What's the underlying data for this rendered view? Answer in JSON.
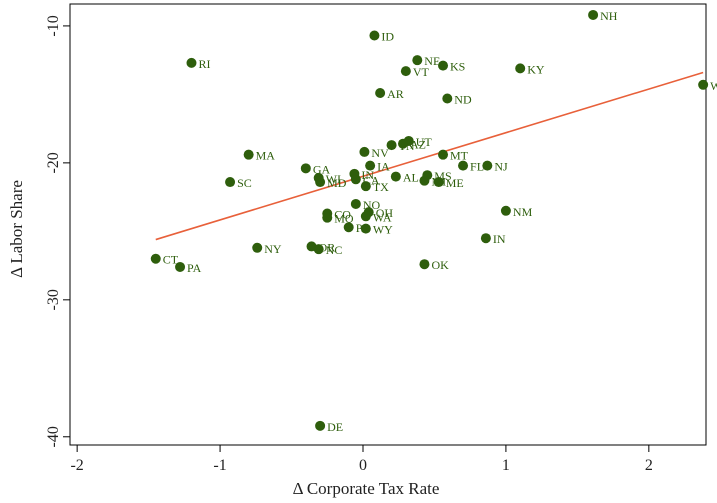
{
  "colors": {
    "point": "#2e5e0c",
    "fit_line": "#e8603a",
    "axis": "#000000"
  },
  "chart_data": {
    "type": "scatter",
    "xlabel": "Δ Corporate Tax Rate",
    "ylabel": "Δ Labor Share",
    "xlim": [
      -2.05,
      2.4
    ],
    "ylim": [
      -40.6,
      -8.4
    ],
    "xticks": [
      -2,
      -1,
      0,
      1,
      2
    ],
    "yticks": [
      -10,
      -20,
      -30,
      -40
    ],
    "xtick_labels": [
      "-2",
      "-1",
      "0",
      "1",
      "2"
    ],
    "ytick_labels": [
      "-10",
      "-20",
      "-30",
      "-40"
    ],
    "grid": false,
    "legend": "none",
    "fit_line": {
      "x": [
        -1.45,
        2.38
      ],
      "y": [
        -25.6,
        -13.4
      ]
    },
    "points": [
      {
        "label": "NH",
        "x": 1.61,
        "y": -9.2
      },
      {
        "label": "WV",
        "x": 2.38,
        "y": -14.3
      },
      {
        "label": "ID",
        "x": 0.08,
        "y": -10.7
      },
      {
        "label": "NE",
        "x": 0.38,
        "y": -12.5
      },
      {
        "label": "KS",
        "x": 0.56,
        "y": -12.9
      },
      {
        "label": "VT",
        "x": 0.3,
        "y": -13.3
      },
      {
        "label": "KY",
        "x": 1.1,
        "y": -13.1
      },
      {
        "label": "RI",
        "x": -1.2,
        "y": -12.7
      },
      {
        "label": "AR",
        "x": 0.12,
        "y": -14.9
      },
      {
        "label": "ND",
        "x": 0.59,
        "y": -15.3
      },
      {
        "label": "UT",
        "x": 0.32,
        "y": -18.4
      },
      {
        "label": "AZ",
        "x": 0.28,
        "y": -18.6
      },
      {
        "label": "TN",
        "x": 0.2,
        "y": -18.7
      },
      {
        "label": "MA",
        "x": -0.8,
        "y": -19.4
      },
      {
        "label": "NV",
        "x": 0.01,
        "y": -19.2
      },
      {
        "label": "MT",
        "x": 0.56,
        "y": -19.4
      },
      {
        "label": "FL",
        "x": 0.7,
        "y": -20.2
      },
      {
        "label": "NJ",
        "x": 0.87,
        "y": -20.2
      },
      {
        "label": "IA",
        "x": 0.05,
        "y": -20.2
      },
      {
        "label": "GA",
        "x": -0.4,
        "y": -20.4
      },
      {
        "label": "IN",
        "x": -0.06,
        "y": -20.8
      },
      {
        "label": "AL",
        "x": 0.23,
        "y": -21.0
      },
      {
        "label": "MS",
        "x": 0.45,
        "y": -20.9
      },
      {
        "label": "MI",
        "x": 0.43,
        "y": -21.3
      },
      {
        "label": "ME",
        "x": 0.53,
        "y": -21.4
      },
      {
        "label": "WI",
        "x": -0.31,
        "y": -21.1
      },
      {
        "label": "CA",
        "x": -0.05,
        "y": -21.2
      },
      {
        "label": "MD",
        "x": -0.3,
        "y": -21.4
      },
      {
        "label": "SC",
        "x": -0.93,
        "y": -21.4
      },
      {
        "label": "TX",
        "x": 0.02,
        "y": -21.7
      },
      {
        "label": "NO",
        "x": -0.05,
        "y": -23.0
      },
      {
        "label": "CO",
        "x": -0.25,
        "y": -23.7
      },
      {
        "label": "OH",
        "x": 0.04,
        "y": -23.6
      },
      {
        "label": "WA",
        "x": 0.02,
        "y": -23.9
      },
      {
        "label": "MO",
        "x": -0.25,
        "y": -24.0
      },
      {
        "label": "NM",
        "x": 1.0,
        "y": -23.5
      },
      {
        "label": "PA",
        "x": -0.1,
        "y": -24.7
      },
      {
        "label": "WY",
        "x": 0.02,
        "y": -24.8
      },
      {
        "label": "IN",
        "x": 0.86,
        "y": -25.5
      },
      {
        "label": "NY",
        "x": -0.74,
        "y": -26.2
      },
      {
        "label": "OR",
        "x": -0.36,
        "y": -26.1
      },
      {
        "label": "NC",
        "x": -0.31,
        "y": -26.3
      },
      {
        "label": "CT",
        "x": -1.45,
        "y": -27.0
      },
      {
        "label": "PA",
        "x": -1.28,
        "y": -27.6
      },
      {
        "label": "OK",
        "x": 0.43,
        "y": -27.4
      },
      {
        "label": "DE",
        "x": -0.3,
        "y": -39.2
      }
    ]
  }
}
